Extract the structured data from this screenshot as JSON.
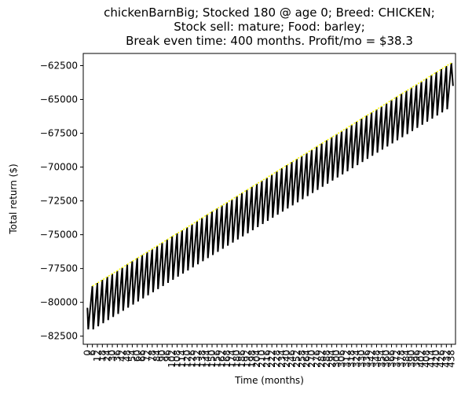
{
  "chart_data": {
    "type": "line",
    "title_lines": [
      "chickenBarnBig; Stocked 180 @ age 0; Breed: CHICKEN;",
      "Stock sell: mature; Food: barley;",
      "Break even time: 400 months. Profit/mo = $38.3"
    ],
    "xlabel": "Time (months)",
    "ylabel": "Total return ($)",
    "xlim": [
      -5,
      443
    ],
    "ylim": [
      -83100,
      -61600
    ],
    "y_ticks": [
      -62500,
      -65000,
      -67500,
      -70000,
      -72500,
      -75000,
      -77500,
      -80000,
      -82500
    ],
    "x_ticks": [
      0,
      6,
      12,
      18,
      24,
      30,
      36,
      42,
      48,
      54,
      60,
      66,
      72,
      78,
      84,
      90,
      96,
      102,
      108,
      114,
      120,
      126,
      132,
      138,
      144,
      150,
      156,
      162,
      168,
      174,
      180,
      186,
      192,
      198,
      204,
      210,
      216,
      222,
      228,
      234,
      240,
      246,
      252,
      258,
      264,
      270,
      276,
      282,
      288,
      294,
      300,
      306,
      312,
      318,
      324,
      330,
      336,
      342,
      348,
      354,
      360,
      366,
      372,
      378,
      384,
      390,
      396,
      402,
      408,
      414,
      420,
      426,
      432,
      438
    ],
    "grid": false,
    "legend": "none",
    "series": [
      {
        "color": "#000000",
        "style": "sawtooth",
        "period_months": 6,
        "start": [
          0,
          -80400
        ],
        "first_peak": -78800,
        "first_trough": -82000,
        "last_peak": -62300,
        "last_trough": -65500,
        "end": [
          440,
          -64000
        ]
      },
      {
        "color": "#ffff00",
        "style": "dotted",
        "x": [
          6,
          438
        ],
        "y": [
          -78800,
          -62300
        ]
      }
    ],
    "colors": {
      "axes": "#000000",
      "background": "#ffffff"
    }
  }
}
